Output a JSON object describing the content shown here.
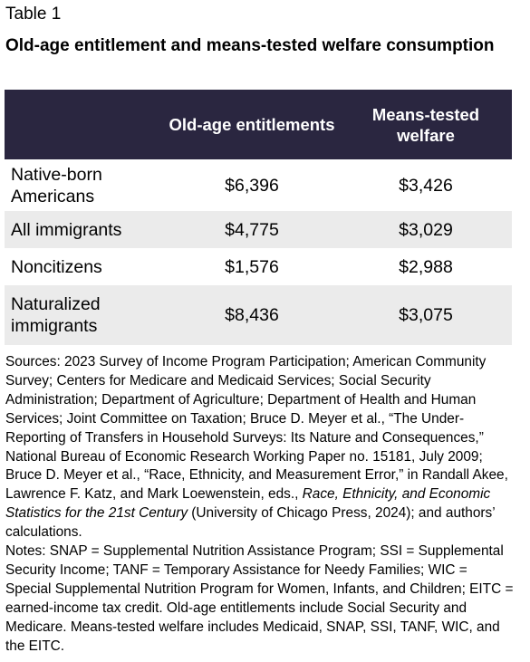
{
  "table_label": "Table 1",
  "title": "Old-age entitlement and means-tested welfare consumption",
  "headers": {
    "col1": "",
    "col2": "Old-age entitlements",
    "col3": "Means-tested welfare"
  },
  "rows": [
    {
      "label": "Native-born Americans",
      "old_age": "$6,396",
      "welfare": "$3,426"
    },
    {
      "label": "All immigrants",
      "old_age": "$4,775",
      "welfare": "$3,029"
    },
    {
      "label": "Noncitizens",
      "old_age": "$1,576",
      "welfare": "$2,988"
    },
    {
      "label": "Naturalized immigrants",
      "old_age": "$8,436",
      "welfare": "$3,075"
    }
  ],
  "sources": {
    "part1": "Sources: 2023 Survey of Income Program Participation; American Community Survey; Centers for Medicare and Medicaid Services; Social Security Administration; Department of Agriculture; Department of Health and Human Services; Joint Committee on Taxation; Bruce D. Meyer et al., “The Under-Reporting of Transfers in Household Surveys: Its Nature and Consequences,” National Bureau of Economic Research Working Paper no. 15181, July 2009; Bruce D. Meyer et al., “Race, Ethnicity, and Measurement Error,” in Randall Akee, Lawrence F. Katz, and Mark Loewenstein, eds., ",
    "italic": "Race, Ethnicity, and Economic Statistics for the 21st Century",
    "part2": " (University of Chicago Press, 2024); and authors’ calculations."
  },
  "notes": "Notes: SNAP = Supplemental Nutrition Assistance Program; SSI = Supplemental Security Income; TANF = Temporary Assistance for Needy Families; WIC = Special Supplemental Nutrition Program for Women, Infants, and Children; EITC = earned-income tax credit. Old-age entitlements include Social Security and Medicare. Means-tested welfare includes Medicaid, SNAP, SSI, TANF, WIC, and the EITC.",
  "colors": {
    "header_bg": "#2a2640",
    "header_text": "#ffffff",
    "stripe_bg": "#ebebeb"
  }
}
